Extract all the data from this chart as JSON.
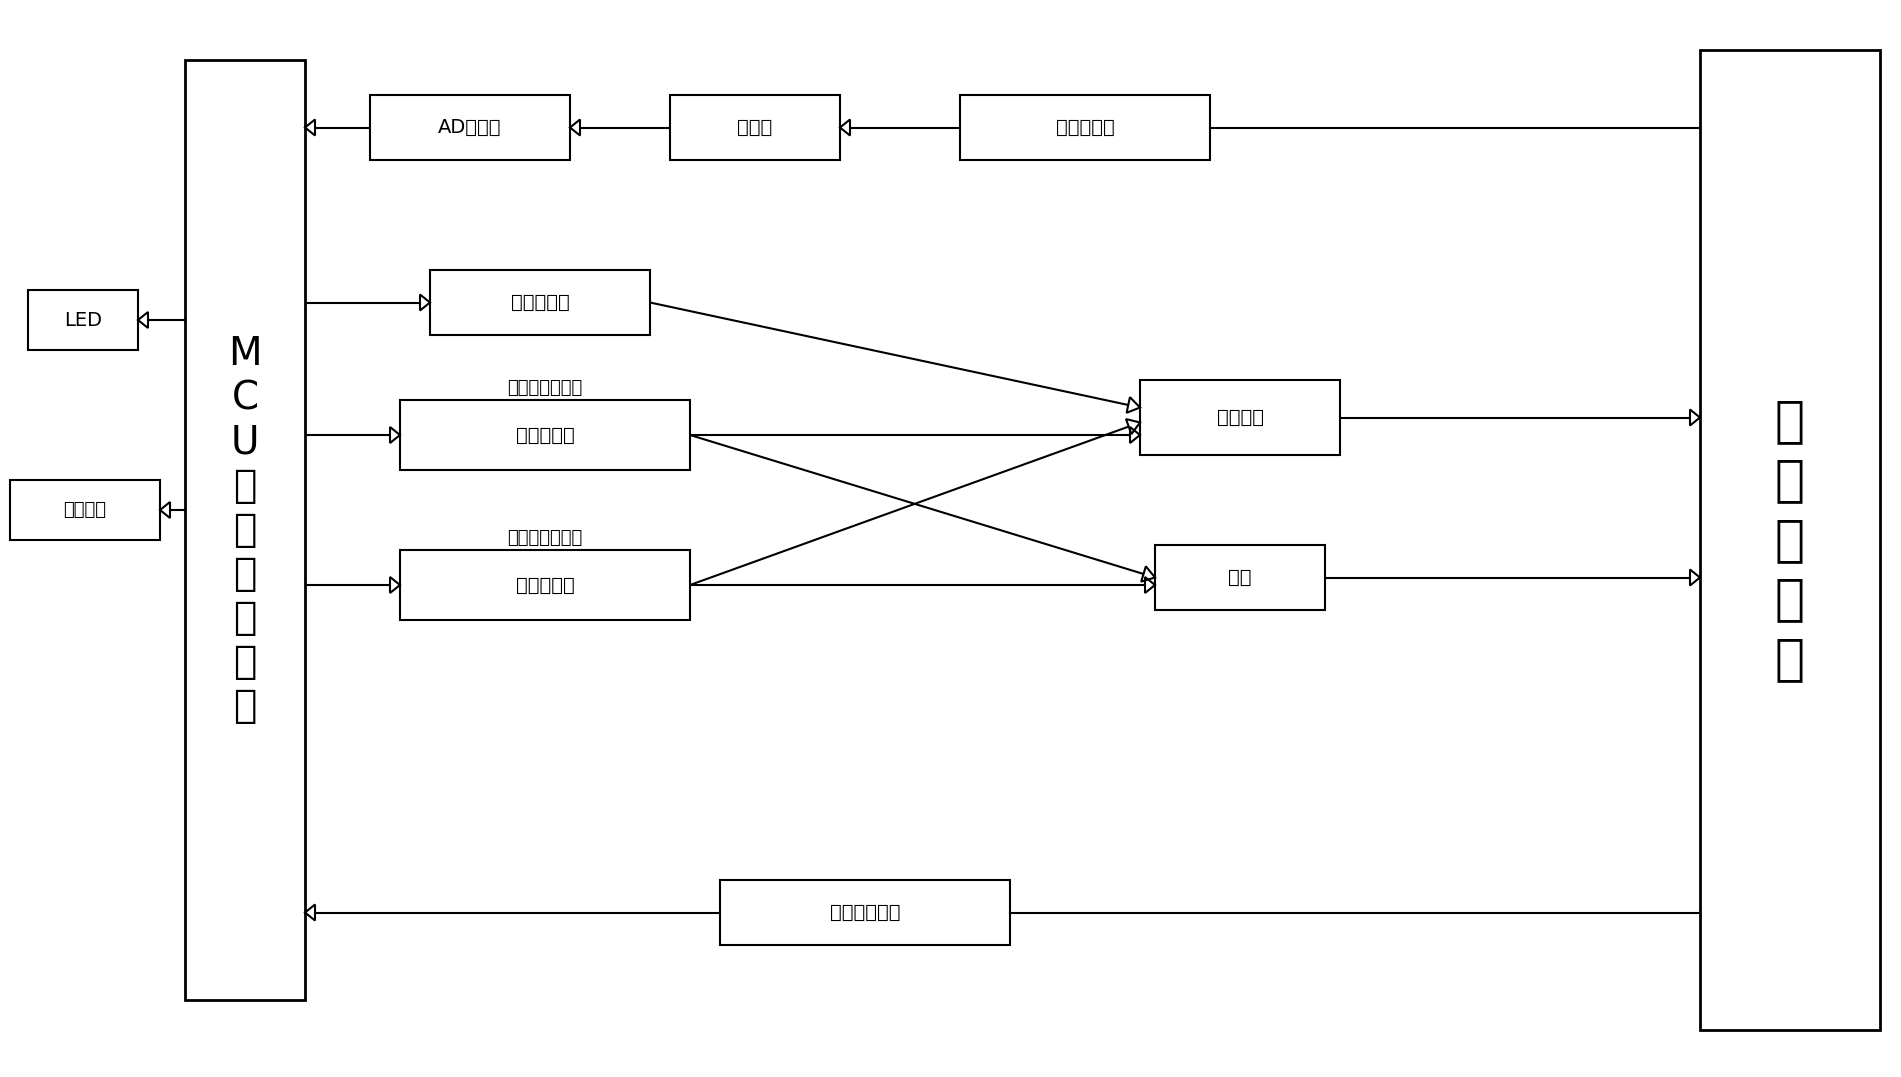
{
  "bg_color": "#ffffff",
  "mcu_label": "M\nC\nU\n中\n央\n控\n制\n单\n元",
  "battery_label": "电\n池\n组\n模\n块",
  "led_label": "LED",
  "display_label": "显示模块",
  "ad_label": "AD转换器",
  "transmitter_label": "变送器",
  "temp_sensor_label": "温度传感器",
  "relay3_label": "第三继电器",
  "relay1_top_label": "电池组作为电源",
  "relay1_box_label": "第一继电器",
  "relay2_top_label": "外电路作为电源",
  "relay2_box_label": "第二继电器",
  "heater_label": "加热线圈",
  "fan_label": "风扇",
  "current_label": "电流检测模块"
}
